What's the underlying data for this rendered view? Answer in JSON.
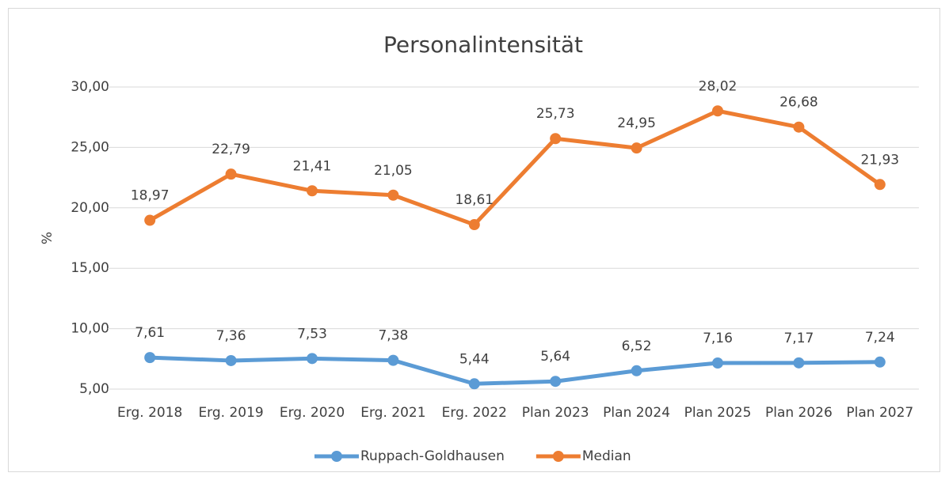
{
  "chart_data": {
    "type": "line",
    "title": "Personalintensität",
    "y_label": "%",
    "categories": [
      "Erg. 2018",
      "Erg. 2019",
      "Erg. 2020",
      "Erg. 2021",
      "Erg. 2022",
      "Plan 2023",
      "Plan 2024",
      "Plan 2025",
      "Plan 2026",
      "Plan 2027"
    ],
    "series": [
      {
        "name": "Ruppach-Goldhausen",
        "color": "#5b9bd5",
        "values": [
          7.61,
          7.36,
          7.53,
          7.38,
          5.44,
          5.64,
          6.52,
          7.16,
          7.17,
          7.24
        ],
        "value_labels": [
          "7,61",
          "7,36",
          "7,53",
          "7,38",
          "5,44",
          "5,64",
          "6,52",
          "7,16",
          "7,17",
          "7,24"
        ]
      },
      {
        "name": "Median",
        "color": "#ed7d31",
        "values": [
          18.97,
          22.79,
          21.41,
          21.05,
          18.61,
          25.73,
          24.95,
          28.02,
          26.68,
          21.93
        ],
        "value_labels": [
          "18,97",
          "22,79",
          "21,41",
          "21,05",
          "18,61",
          "25,73",
          "24,95",
          "28,02",
          "26,68",
          "21,93"
        ]
      }
    ],
    "ylim": [
      5,
      30
    ],
    "yticks": [
      {
        "value": 5,
        "label": "5,00"
      },
      {
        "value": 10,
        "label": "10,00"
      },
      {
        "value": 15,
        "label": "15,00"
      },
      {
        "value": 20,
        "label": "20,00"
      },
      {
        "value": 25,
        "label": "25,00"
      },
      {
        "value": 30,
        "label": "30,00"
      }
    ],
    "grid": true,
    "legend": "bottom"
  }
}
